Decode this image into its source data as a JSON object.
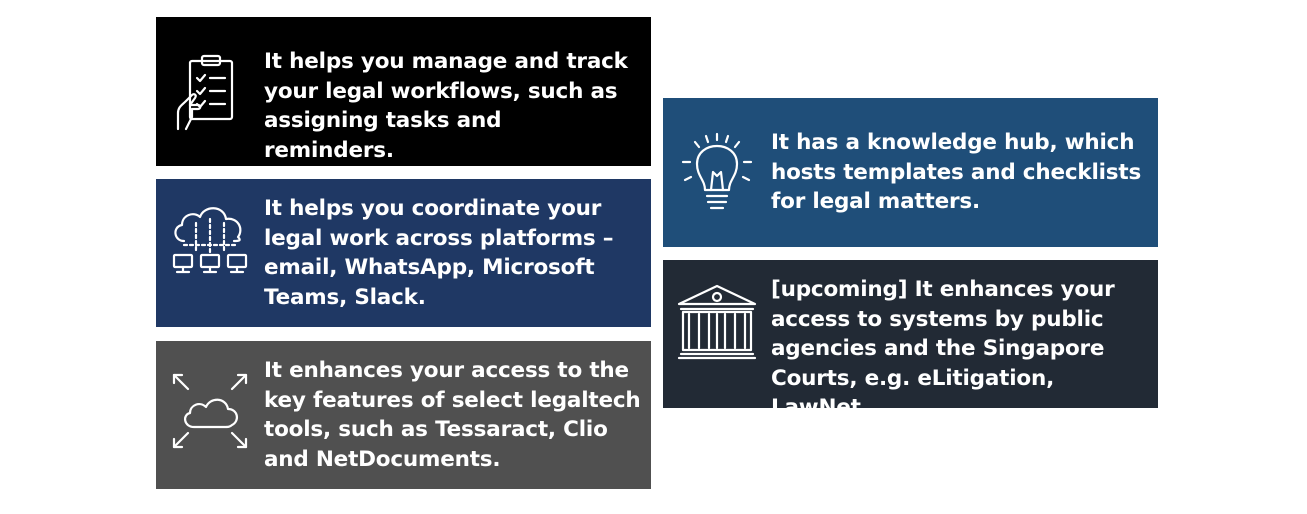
{
  "cards": [
    {
      "id": "workflows",
      "text": "It helps you manage and track your legal workflows, such as assigning tasks and reminders.",
      "icon": "clipboard-checklist-icon",
      "bg": "#000000"
    },
    {
      "id": "coordinate",
      "text": "It helps you coordinate your legal work across platforms – email, WhatsApp, Microsoft Teams, Slack.",
      "icon": "cloud-network-icon",
      "bg": "#1f3864"
    },
    {
      "id": "legaltech",
      "text": "It enhances your access to the key features of select legaltech tools, such as Tessaract, Clio and NetDocuments.",
      "icon": "cloud-expand-icon",
      "bg": "#505050"
    },
    {
      "id": "knowledge",
      "text": "It has a knowledge hub, which hosts templates and checklists for legal matters.",
      "icon": "lightbulb-icon",
      "bg": "#1f4e79"
    },
    {
      "id": "agencies",
      "text": "[upcoming] It enhances your access to systems by public agencies and the Singapore Courts, e.g. eLitigation, LawNet.",
      "icon": "courthouse-icon",
      "bg": "#222a35"
    }
  ]
}
